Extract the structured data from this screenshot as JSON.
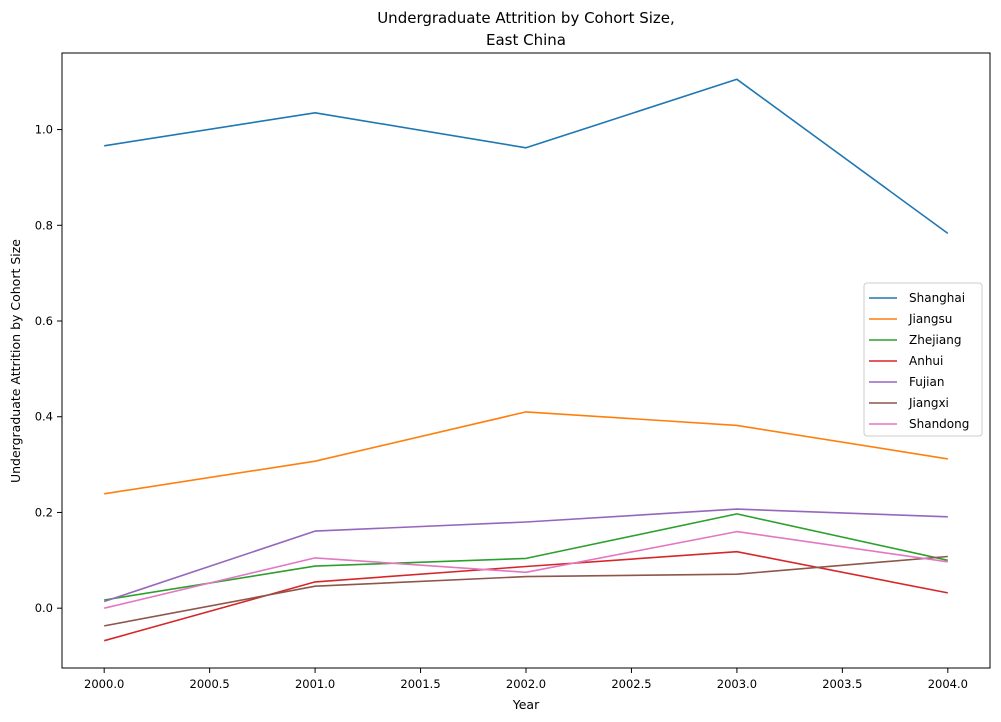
{
  "chart_data": {
    "type": "line",
    "title_line1": "Undergraduate Attrition by Cohort Size,",
    "title_line2": "East China",
    "xlabel": "Year",
    "ylabel": "Undergraduate Attrition by Cohort Size",
    "x": [
      2000,
      2001,
      2002,
      2003,
      2004
    ],
    "xlim": [
      1999.8,
      2004.2
    ],
    "ylim": [
      -0.125,
      1.16
    ],
    "xticks": [
      2000.0,
      2000.5,
      2001.0,
      2001.5,
      2002.0,
      2002.5,
      2003.0,
      2003.5,
      2004.0
    ],
    "xtick_labels": [
      "2000.0",
      "2000.5",
      "2001.0",
      "2001.5",
      "2002.0",
      "2002.5",
      "2003.0",
      "2003.5",
      "2004.0"
    ],
    "yticks": [
      0.0,
      0.2,
      0.4,
      0.6,
      0.8,
      1.0
    ],
    "ytick_labels": [
      "0.0",
      "0.2",
      "0.4",
      "0.6",
      "0.8",
      "1.0"
    ],
    "grid": false,
    "legend_position": "center-right",
    "series": [
      {
        "name": "Shanghai",
        "color": "#1f77b4",
        "values": [
          0.966,
          1.035,
          0.962,
          1.105,
          0.783
        ]
      },
      {
        "name": "Jiangsu",
        "color": "#ff7f0e",
        "values": [
          0.239,
          0.307,
          0.41,
          0.382,
          0.312
        ]
      },
      {
        "name": "Zhejiang",
        "color": "#2ca02c",
        "values": [
          0.017,
          0.088,
          0.104,
          0.197,
          0.1
        ]
      },
      {
        "name": "Anhui",
        "color": "#d62728",
        "values": [
          -0.068,
          0.055,
          0.087,
          0.118,
          0.032
        ]
      },
      {
        "name": "Fujian",
        "color": "#9467bd",
        "values": [
          0.014,
          0.161,
          0.18,
          0.207,
          0.191
        ]
      },
      {
        "name": "Jiangxi",
        "color": "#8c564b",
        "values": [
          -0.037,
          0.046,
          0.066,
          0.071,
          0.108
        ]
      },
      {
        "name": "Shandong",
        "color": "#e377c2",
        "values": [
          0.0,
          0.105,
          0.075,
          0.16,
          0.097
        ]
      }
    ]
  }
}
